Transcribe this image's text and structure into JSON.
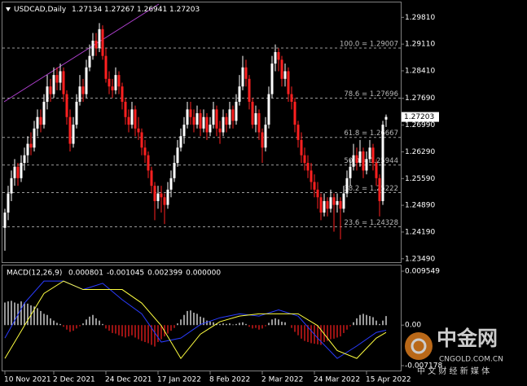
{
  "chart_data": {
    "type": "candlestick",
    "symbol": "USDCAD,Daily",
    "up_color": "#ffffff",
    "down_color": "#ff2020",
    "candles": [
      [
        1.243,
        1.248,
        1.237,
        1.247
      ],
      [
        1.247,
        1.254,
        1.245,
        1.252
      ],
      [
        1.252,
        1.258,
        1.25,
        1.256
      ],
      [
        1.256,
        1.261,
        1.254,
        1.259
      ],
      [
        1.259,
        1.26,
        1.254,
        1.256
      ],
      [
        1.256,
        1.262,
        1.255,
        1.26
      ],
      [
        1.26,
        1.264,
        1.258,
        1.262
      ],
      [
        1.262,
        1.267,
        1.26,
        1.265
      ],
      [
        1.265,
        1.268,
        1.262,
        1.264
      ],
      [
        1.264,
        1.271,
        1.263,
        1.269
      ],
      [
        1.269,
        1.274,
        1.267,
        1.272
      ],
      [
        1.272,
        1.274,
        1.268,
        1.27
      ],
      [
        1.27,
        1.278,
        1.269,
        1.276
      ],
      [
        1.276,
        1.283,
        1.274,
        1.28
      ],
      [
        1.28,
        1.282,
        1.276,
        1.278
      ],
      [
        1.278,
        1.285,
        1.277,
        1.283
      ],
      [
        1.283,
        1.285,
        1.279,
        1.281
      ],
      [
        1.281,
        1.286,
        1.279,
        1.284
      ],
      [
        1.284,
        1.285,
        1.276,
        1.278
      ],
      [
        1.278,
        1.279,
        1.27,
        1.272
      ],
      [
        1.272,
        1.274,
        1.263,
        1.265
      ],
      [
        1.265,
        1.272,
        1.264,
        1.27
      ],
      [
        1.27,
        1.278,
        1.269,
        1.276
      ],
      [
        1.276,
        1.283,
        1.275,
        1.28
      ],
      [
        1.28,
        1.282,
        1.276,
        1.278
      ],
      [
        1.278,
        1.287,
        1.277,
        1.285
      ],
      [
        1.285,
        1.291,
        1.284,
        1.288
      ],
      [
        1.288,
        1.294,
        1.287,
        1.292
      ],
      [
        1.292,
        1.294,
        1.288,
        1.29
      ],
      [
        1.29,
        1.2966,
        1.289,
        1.295
      ],
      [
        1.295,
        1.296,
        1.287,
        1.288
      ],
      [
        1.288,
        1.29,
        1.281,
        1.282
      ],
      [
        1.282,
        1.284,
        1.278,
        1.28
      ],
      [
        1.28,
        1.282,
        1.277,
        1.279
      ],
      [
        1.279,
        1.285,
        1.278,
        1.283
      ],
      [
        1.283,
        1.284,
        1.278,
        1.28
      ],
      [
        1.28,
        1.281,
        1.274,
        1.276
      ],
      [
        1.276,
        1.277,
        1.27,
        1.272
      ],
      [
        1.272,
        1.274,
        1.268,
        1.27
      ],
      [
        1.27,
        1.276,
        1.269,
        1.274
      ],
      [
        1.274,
        1.275,
        1.267,
        1.269
      ],
      [
        1.269,
        1.272,
        1.266,
        1.268
      ],
      [
        1.268,
        1.269,
        1.262,
        1.264
      ],
      [
        1.264,
        1.266,
        1.26,
        1.262
      ],
      [
        1.262,
        1.263,
        1.256,
        1.258
      ],
      [
        1.258,
        1.259,
        1.252,
        1.254
      ],
      [
        1.254,
        1.255,
        1.245,
        1.25
      ],
      [
        1.25,
        1.254,
        1.248,
        1.252
      ],
      [
        1.252,
        1.254,
        1.247,
        1.251
      ],
      [
        1.251,
        1.252,
        1.244,
        1.249
      ],
      [
        1.249,
        1.255,
        1.248,
        1.253
      ],
      [
        1.253,
        1.258,
        1.251,
        1.256
      ],
      [
        1.256,
        1.262,
        1.255,
        1.26
      ],
      [
        1.26,
        1.266,
        1.259,
        1.264
      ],
      [
        1.264,
        1.269,
        1.263,
        1.267
      ],
      [
        1.267,
        1.272,
        1.265,
        1.27
      ],
      [
        1.27,
        1.276,
        1.269,
        1.274
      ],
      [
        1.274,
        1.276,
        1.27,
        1.272
      ],
      [
        1.272,
        1.274,
        1.268,
        1.27
      ],
      [
        1.27,
        1.275,
        1.269,
        1.273
      ],
      [
        1.273,
        1.274,
        1.267,
        1.269
      ],
      [
        1.269,
        1.274,
        1.268,
        1.272
      ],
      [
        1.272,
        1.273,
        1.266,
        1.268
      ],
      [
        1.268,
        1.272,
        1.267,
        1.27
      ],
      [
        1.27,
        1.276,
        1.269,
        1.274
      ],
      [
        1.274,
        1.275,
        1.267,
        1.269
      ],
      [
        1.269,
        1.271,
        1.265,
        1.268
      ],
      [
        1.268,
        1.274,
        1.267,
        1.272
      ],
      [
        1.272,
        1.273,
        1.268,
        1.27
      ],
      [
        1.27,
        1.276,
        1.269,
        1.274
      ],
      [
        1.274,
        1.275,
        1.269,
        1.271
      ],
      [
        1.271,
        1.278,
        1.27,
        1.276
      ],
      [
        1.276,
        1.283,
        1.275,
        1.28
      ],
      [
        1.28,
        1.288,
        1.279,
        1.285
      ],
      [
        1.285,
        1.287,
        1.28,
        1.282
      ],
      [
        1.282,
        1.283,
        1.274,
        1.276
      ],
      [
        1.276,
        1.277,
        1.269,
        1.27
      ],
      [
        1.27,
        1.275,
        1.268,
        1.273
      ],
      [
        1.273,
        1.274,
        1.266,
        1.268
      ],
      [
        1.268,
        1.269,
        1.26,
        1.264
      ],
      [
        1.264,
        1.272,
        1.263,
        1.27
      ],
      [
        1.27,
        1.28,
        1.269,
        1.278
      ],
      [
        1.278,
        1.288,
        1.277,
        1.286
      ],
      [
        1.286,
        1.291,
        1.284,
        1.289
      ],
      [
        1.289,
        1.29,
        1.284,
        1.287
      ],
      [
        1.287,
        1.288,
        1.28,
        1.282
      ],
      [
        1.282,
        1.286,
        1.28,
        1.284
      ],
      [
        1.284,
        1.285,
        1.276,
        1.278
      ],
      [
        1.278,
        1.28,
        1.274,
        1.276
      ],
      [
        1.276,
        1.277,
        1.268,
        1.27
      ],
      [
        1.27,
        1.271,
        1.264,
        1.266
      ],
      [
        1.266,
        1.268,
        1.26,
        1.262
      ],
      [
        1.262,
        1.264,
        1.258,
        1.26
      ],
      [
        1.26,
        1.262,
        1.256,
        1.258
      ],
      [
        1.258,
        1.26,
        1.253,
        1.255
      ],
      [
        1.255,
        1.257,
        1.251,
        1.253
      ],
      [
        1.253,
        1.255,
        1.248,
        1.251
      ],
      [
        1.251,
        1.252,
        1.245,
        1.247
      ],
      [
        1.247,
        1.252,
        1.246,
        1.25
      ],
      [
        1.25,
        1.251,
        1.246,
        1.248
      ],
      [
        1.248,
        1.253,
        1.247,
        1.251
      ],
      [
        1.251,
        1.252,
        1.242,
        1.249
      ],
      [
        1.249,
        1.252,
        1.247,
        1.25
      ],
      [
        1.25,
        1.251,
        1.24,
        1.248
      ],
      [
        1.248,
        1.254,
        1.247,
        1.252
      ],
      [
        1.252,
        1.258,
        1.251,
        1.256
      ],
      [
        1.256,
        1.261,
        1.254,
        1.259
      ],
      [
        1.259,
        1.265,
        1.258,
        1.262
      ],
      [
        1.262,
        1.264,
        1.258,
        1.26
      ],
      [
        1.26,
        1.266,
        1.259,
        1.263
      ],
      [
        1.263,
        1.264,
        1.256,
        1.258
      ],
      [
        1.258,
        1.263,
        1.257,
        1.261
      ],
      [
        1.261,
        1.266,
        1.26,
        1.264
      ],
      [
        1.264,
        1.265,
        1.258,
        1.26
      ],
      [
        1.26,
        1.261,
        1.254,
        1.256
      ],
      [
        1.256,
        1.257,
        1.246,
        1.25
      ],
      [
        1.25,
        1.271,
        1.249,
        1.27
      ],
      [
        1.27134,
        1.27267,
        1.26941,
        1.27203
      ]
    ],
    "ylim": [
      1.234,
      1.302
    ],
    "yticks": [
      {
        "value": 1.2981,
        "label": "1.29810"
      },
      {
        "value": 1.2911,
        "label": "1.29110"
      },
      {
        "value": 1.2841,
        "label": "1.28410"
      },
      {
        "value": 1.2769,
        "label": "1.27690"
      },
      {
        "value": 1.2699,
        "label": "1.26990"
      },
      {
        "value": 1.2629,
        "label": "1.26290"
      },
      {
        "value": 1.2559,
        "label": "1.25590"
      },
      {
        "value": 1.2489,
        "label": "1.24890"
      },
      {
        "value": 1.2419,
        "label": "1.24190"
      },
      {
        "value": 1.2349,
        "label": "1.23490"
      }
    ],
    "last_price": 1.27203,
    "fib_levels": [
      {
        "value": 1.29007,
        "label": "100.0 = 1.29007"
      },
      {
        "value": 1.27696,
        "label": "78.6 = 1.27696"
      },
      {
        "value": 1.26667,
        "label": "61.8 = 1.26667"
      },
      {
        "value": 1.25944,
        "label": "50.0 = 1.25944"
      },
      {
        "value": 1.25222,
        "label": "38.2 = 1.25222"
      },
      {
        "value": 1.24328,
        "label": "23.6 = 1.24328"
      }
    ],
    "xticks": [
      {
        "value": 0,
        "label": "10 Nov 2021"
      },
      {
        "value": 15,
        "label": "2 Dec 2021"
      },
      {
        "value": 31,
        "label": "24 Dec 2021"
      },
      {
        "value": 47,
        "label": "17 Jan 2022"
      },
      {
        "value": 63,
        "label": "8 Feb 2022"
      },
      {
        "value": 79,
        "label": "2 Mar 2022"
      },
      {
        "value": 95,
        "label": "24 Mar 2022"
      },
      {
        "value": 111,
        "label": "15 Apr 2022"
      }
    ],
    "macd": {
      "title": "MACD(12,26,9)",
      "indicator_values": [
        "0.000801",
        "-0.001045",
        "0.002399",
        "0.000000"
      ],
      "ylim": [
        -0.007178,
        0.009549
      ],
      "yticks": [
        0.009549,
        {
          "value": 0,
          "label": "0.00"
        },
        -0.007178
      ],
      "histogram": [
        0.004,
        0.0042,
        0.0043,
        0.004,
        0.0038,
        0.0042,
        0.004,
        0.0038,
        0.0035,
        0.0033,
        0.003,
        0.0025,
        0.002,
        0.0018,
        0.0012,
        0.0008,
        0.0004,
        0.0002,
        -0.0003,
        -0.0008,
        -0.0012,
        -0.001,
        -0.0006,
        -0.0002,
        0.0003,
        0.001,
        0.0015,
        0.0018,
        0.0012,
        0.0008,
        0.0002,
        -0.0006,
        -0.001,
        -0.0014,
        -0.0015,
        -0.0018,
        -0.002,
        -0.0022,
        -0.002,
        -0.0018,
        -0.0022,
        -0.0025,
        -0.0028,
        -0.003,
        -0.0032,
        -0.0035,
        -0.0038,
        -0.003,
        -0.0025,
        -0.002,
        -0.0015,
        -0.001,
        -0.0005,
        0.0003,
        0.001,
        0.0018,
        0.0025,
        0.0026,
        0.0022,
        0.002,
        0.0015,
        0.0013,
        0.0008,
        0.0006,
        0.0005,
        0.0003,
        0.0002,
        0.0003,
        0.0002,
        0.0003,
        0.0001,
        0.0002,
        0.0004,
        0.0005,
        0.0002,
        -0.0003,
        -0.0006,
        -0.0005,
        -0.0008,
        -0.0006,
        -0.0002,
        0.0004,
        0.001,
        0.0012,
        0.001,
        0.0006,
        0.0005,
        0,
        -0.0005,
        -0.0012,
        -0.0018,
        -0.0024,
        -0.0028,
        -0.003,
        -0.0032,
        -0.0033,
        -0.0034,
        -0.0035,
        -0.003,
        -0.0028,
        -0.0025,
        -0.0024,
        -0.0022,
        -0.002,
        -0.0014,
        -0.0008,
        -0.0002,
        0.0005,
        0.0012,
        0.0018,
        0.002,
        0.0018,
        0.0016,
        0.0014,
        0.0008,
        0.0002,
        0.0008,
        0.0016
      ],
      "hist_up_color": "#ffffff",
      "hist_down_color": "#ff2020",
      "line_index": [
        0,
        6,
        12,
        18,
        24,
        30,
        36,
        42,
        48,
        54,
        60,
        66,
        72,
        78,
        84,
        90,
        96,
        102,
        108,
        114,
        117
      ],
      "lines": [
        {
          "color": "#2a3cff",
          "values": [
            -0.0023,
            0.0039,
            0.0078,
            0.0078,
            0.0063,
            0.0074,
            0.0045,
            0.002,
            -0.003,
            -0.0023,
            0.0001,
            0.0013,
            0.002,
            0.0016,
            0.0027,
            0.0016,
            -0.0023,
            -0.0059,
            -0.0037,
            -0.0013,
            -0.0009
          ]
        },
        {
          "color": "#ffff40",
          "values": [
            -0.0059,
            -0.0001,
            0.0056,
            0.0078,
            0.0063,
            0.0063,
            0.0063,
            0.0039,
            -0.0001,
            -0.0059,
            -0.0016,
            0.0006,
            0.0016,
            0.002,
            0.002,
            0.002,
            -0.0001,
            -0.0045,
            -0.0059,
            -0.0023,
            -0.0013
          ]
        }
      ]
    }
  },
  "watermark": {
    "brand": "中金网",
    "domain": "CNGOLD.COM.CN",
    "slogan": "中 文 财 经 新 媒 体"
  }
}
